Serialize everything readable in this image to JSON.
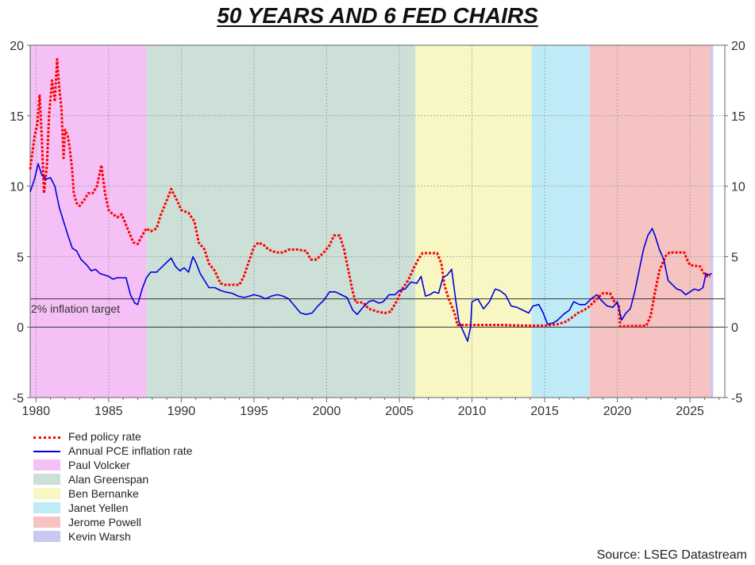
{
  "title": "50 YEARS AND 6 FED CHAIRS",
  "source": "Source: LSEG Datastream",
  "chart_data": {
    "type": "line",
    "title": "50 YEARS AND 6 FED CHAIRS",
    "xlim": [
      1979.6,
      2027.4
    ],
    "ylim": [
      -5,
      20
    ],
    "x_ticks": [
      "1980",
      "1985",
      "1990",
      "1995",
      "2000",
      "2005",
      "2010",
      "2015",
      "2020",
      "2025"
    ],
    "y_ticks": [
      "20",
      "15",
      "10",
      "5",
      "0",
      "-5"
    ],
    "grid": true,
    "legend_position": "bottom-left",
    "reference_line": {
      "y": 2,
      "label": "2% inflation target"
    },
    "chairs": [
      {
        "name": "Paul Volcker",
        "start": 1979.6,
        "end": 1987.6,
        "color": "#f5c0f5"
      },
      {
        "name": "Alan Greenspan",
        "start": 1987.6,
        "end": 2006.1,
        "color": "#cde0d7"
      },
      {
        "name": "Ben Bernanke",
        "start": 2006.1,
        "end": 2014.1,
        "color": "#f8f7c3"
      },
      {
        "name": "Janet Yellen",
        "start": 2014.1,
        "end": 2018.1,
        "color": "#bfeaf7"
      },
      {
        "name": "Jerome Powell",
        "start": 2018.1,
        "end": 2026.4,
        "color": "#f6c3c3"
      },
      {
        "name": "Kevin Warsh",
        "start": 2026.4,
        "end": 2026.6,
        "color": "#c8c8f0"
      }
    ],
    "series": [
      {
        "name": "Fed policy rate",
        "color": "#ff0000",
        "style": "dotted",
        "points": [
          [
            1979.6,
            11.2
          ],
          [
            1979.9,
            13.5
          ],
          [
            1980.1,
            14.5
          ],
          [
            1980.25,
            16.5
          ],
          [
            1980.4,
            13.5
          ],
          [
            1980.55,
            9.5
          ],
          [
            1980.75,
            11.5
          ],
          [
            1980.9,
            15
          ],
          [
            1981.1,
            17.5
          ],
          [
            1981.3,
            16
          ],
          [
            1981.45,
            19
          ],
          [
            1981.6,
            17
          ],
          [
            1981.75,
            15.5
          ],
          [
            1981.9,
            12
          ],
          [
            1982.0,
            14
          ],
          [
            1982.2,
            13.5
          ],
          [
            1982.35,
            12.5
          ],
          [
            1982.5,
            11
          ],
          [
            1982.6,
            9.5
          ],
          [
            1982.8,
            8.8
          ],
          [
            1983.0,
            8.6
          ],
          [
            1983.3,
            9
          ],
          [
            1983.6,
            9.5
          ],
          [
            1983.9,
            9.5
          ],
          [
            1984.2,
            10
          ],
          [
            1984.5,
            11.5
          ],
          [
            1984.75,
            9.5
          ],
          [
            1985.0,
            8.3
          ],
          [
            1985.3,
            8
          ],
          [
            1985.6,
            7.8
          ],
          [
            1985.9,
            8
          ],
          [
            1986.3,
            7
          ],
          [
            1986.7,
            6
          ],
          [
            1987.0,
            5.9
          ],
          [
            1987.3,
            6.5
          ],
          [
            1987.6,
            7
          ],
          [
            1987.9,
            6.8
          ],
          [
            1988.3,
            7
          ],
          [
            1988.6,
            8
          ],
          [
            1989.0,
            9
          ],
          [
            1989.3,
            9.8
          ],
          [
            1989.7,
            9
          ],
          [
            1990.0,
            8.3
          ],
          [
            1990.5,
            8.1
          ],
          [
            1990.9,
            7.5
          ],
          [
            1991.2,
            6
          ],
          [
            1991.6,
            5.5
          ],
          [
            1991.9,
            4.5
          ],
          [
            1992.3,
            4
          ],
          [
            1992.7,
            3.1
          ],
          [
            1993.0,
            3
          ],
          [
            1993.5,
            3
          ],
          [
            1994.0,
            3
          ],
          [
            1994.3,
            3.6
          ],
          [
            1994.7,
            4.8
          ],
          [
            1995.0,
            5.7
          ],
          [
            1995.3,
            6
          ],
          [
            1995.7,
            5.8
          ],
          [
            1996.0,
            5.5
          ],
          [
            1996.5,
            5.3
          ],
          [
            1997.0,
            5.3
          ],
          [
            1997.4,
            5.5
          ],
          [
            1998.0,
            5.5
          ],
          [
            1998.6,
            5.4
          ],
          [
            1998.9,
            4.8
          ],
          [
            1999.3,
            4.8
          ],
          [
            1999.8,
            5.3
          ],
          [
            2000.2,
            5.8
          ],
          [
            2000.5,
            6.5
          ],
          [
            2000.9,
            6.5
          ],
          [
            2001.2,
            5.5
          ],
          [
            2001.5,
            4
          ],
          [
            2001.8,
            2.5
          ],
          [
            2002.0,
            1.75
          ],
          [
            2002.5,
            1.75
          ],
          [
            2002.9,
            1.3
          ],
          [
            2003.5,
            1.1
          ],
          [
            2004.0,
            1
          ],
          [
            2004.4,
            1.1
          ],
          [
            2004.8,
            1.8
          ],
          [
            2005.2,
            2.7
          ],
          [
            2005.6,
            3.3
          ],
          [
            2006.0,
            4.2
          ],
          [
            2006.3,
            4.8
          ],
          [
            2006.6,
            5.25
          ],
          [
            2007.0,
            5.25
          ],
          [
            2007.6,
            5.25
          ],
          [
            2007.9,
            4.5
          ],
          [
            2008.1,
            3
          ],
          [
            2008.4,
            2
          ],
          [
            2008.8,
            1
          ],
          [
            2009.0,
            0.15
          ],
          [
            2010.0,
            0.15
          ],
          [
            2012.0,
            0.15
          ],
          [
            2014.0,
            0.1
          ],
          [
            2015.0,
            0.1
          ],
          [
            2015.9,
            0.2
          ],
          [
            2016.5,
            0.4
          ],
          [
            2016.9,
            0.7
          ],
          [
            2017.3,
            1
          ],
          [
            2017.7,
            1.2
          ],
          [
            2018.0,
            1.4
          ],
          [
            2018.4,
            1.8
          ],
          [
            2018.8,
            2.2
          ],
          [
            2019.0,
            2.4
          ],
          [
            2019.5,
            2.4
          ],
          [
            2019.8,
            1.8
          ],
          [
            2020.1,
            1.6
          ],
          [
            2020.2,
            0.05
          ],
          [
            2021.0,
            0.08
          ],
          [
            2022.0,
            0.1
          ],
          [
            2022.3,
            0.8
          ],
          [
            2022.6,
            2.5
          ],
          [
            2022.9,
            4
          ],
          [
            2023.3,
            5
          ],
          [
            2023.6,
            5.3
          ],
          [
            2024.0,
            5.3
          ],
          [
            2024.6,
            5.3
          ],
          [
            2024.8,
            4.8
          ],
          [
            2025.0,
            4.4
          ],
          [
            2025.7,
            4.3
          ],
          [
            2025.9,
            3.9
          ],
          [
            2026.2,
            3.6
          ],
          [
            2026.4,
            3.6
          ]
        ]
      },
      {
        "name": "Annual PCE inflation rate",
        "color": "#0000dd",
        "style": "solid",
        "points": [
          [
            1979.6,
            9.6
          ],
          [
            1979.9,
            10.5
          ],
          [
            1980.15,
            11.6
          ],
          [
            1980.4,
            10.8
          ],
          [
            1980.7,
            10.5
          ],
          [
            1981.0,
            10.6
          ],
          [
            1981.3,
            10
          ],
          [
            1981.6,
            8.5
          ],
          [
            1981.9,
            7.5
          ],
          [
            1982.2,
            6.5
          ],
          [
            1982.5,
            5.6
          ],
          [
            1982.8,
            5.4
          ],
          [
            1983.1,
            4.8
          ],
          [
            1983.5,
            4.4
          ],
          [
            1983.8,
            4
          ],
          [
            1984.1,
            4.1
          ],
          [
            1984.4,
            3.8
          ],
          [
            1984.7,
            3.7
          ],
          [
            1985.0,
            3.6
          ],
          [
            1985.3,
            3.4
          ],
          [
            1985.6,
            3.5
          ],
          [
            1985.9,
            3.5
          ],
          [
            1986.2,
            3.5
          ],
          [
            1986.5,
            2.3
          ],
          [
            1986.8,
            1.7
          ],
          [
            1987.0,
            1.6
          ],
          [
            1987.3,
            2.7
          ],
          [
            1987.6,
            3.5
          ],
          [
            1987.9,
            3.9
          ],
          [
            1988.3,
            3.9
          ],
          [
            1988.7,
            4.3
          ],
          [
            1989.0,
            4.6
          ],
          [
            1989.3,
            4.9
          ],
          [
            1989.6,
            4.3
          ],
          [
            1989.9,
            4
          ],
          [
            1990.2,
            4.2
          ],
          [
            1990.5,
            3.9
          ],
          [
            1990.8,
            5
          ],
          [
            1991.0,
            4.6
          ],
          [
            1991.3,
            3.8
          ],
          [
            1991.6,
            3.3
          ],
          [
            1991.9,
            2.8
          ],
          [
            1992.3,
            2.8
          ],
          [
            1992.7,
            2.6
          ],
          [
            1993.0,
            2.5
          ],
          [
            1993.5,
            2.4
          ],
          [
            1993.9,
            2.2
          ],
          [
            1994.3,
            2.1
          ],
          [
            1994.7,
            2.2
          ],
          [
            1995.0,
            2.3
          ],
          [
            1995.4,
            2.2
          ],
          [
            1995.8,
            2
          ],
          [
            1996.2,
            2.2
          ],
          [
            1996.6,
            2.3
          ],
          [
            1997.0,
            2.2
          ],
          [
            1997.4,
            2
          ],
          [
            1997.8,
            1.5
          ],
          [
            1998.2,
            1
          ],
          [
            1998.6,
            0.9
          ],
          [
            1999.0,
            1
          ],
          [
            1999.4,
            1.5
          ],
          [
            1999.8,
            1.9
          ],
          [
            2000.2,
            2.5
          ],
          [
            2000.6,
            2.5
          ],
          [
            2001.0,
            2.3
          ],
          [
            2001.4,
            2.1
          ],
          [
            2001.8,
            1.2
          ],
          [
            2002.1,
            0.9
          ],
          [
            2002.5,
            1.4
          ],
          [
            2002.9,
            1.8
          ],
          [
            2003.2,
            1.9
          ],
          [
            2003.6,
            1.7
          ],
          [
            2003.9,
            1.8
          ],
          [
            2004.3,
            2.3
          ],
          [
            2004.7,
            2.3
          ],
          [
            2005.0,
            2.6
          ],
          [
            2005.4,
            2.7
          ],
          [
            2005.8,
            3.2
          ],
          [
            2006.2,
            3.1
          ],
          [
            2006.5,
            3.6
          ],
          [
            2006.8,
            2.2
          ],
          [
            2007.1,
            2.3
          ],
          [
            2007.4,
            2.5
          ],
          [
            2007.7,
            2.4
          ],
          [
            2008.0,
            3.5
          ],
          [
            2008.3,
            3.7
          ],
          [
            2008.6,
            4.1
          ],
          [
            2008.9,
            1.8
          ],
          [
            2009.1,
            0.4
          ],
          [
            2009.4,
            -0.3
          ],
          [
            2009.7,
            -1
          ],
          [
            2009.9,
            0
          ],
          [
            2010.0,
            1.8
          ],
          [
            2010.4,
            2
          ],
          [
            2010.8,
            1.3
          ],
          [
            2011.2,
            1.8
          ],
          [
            2011.6,
            2.7
          ],
          [
            2011.9,
            2.6
          ],
          [
            2012.3,
            2.3
          ],
          [
            2012.7,
            1.5
          ],
          [
            2013.1,
            1.4
          ],
          [
            2013.5,
            1.2
          ],
          [
            2013.9,
            1
          ],
          [
            2014.2,
            1.5
          ],
          [
            2014.6,
            1.6
          ],
          [
            2014.9,
            1
          ],
          [
            2015.2,
            0.2
          ],
          [
            2015.6,
            0.3
          ],
          [
            2015.9,
            0.5
          ],
          [
            2016.3,
            0.9
          ],
          [
            2016.7,
            1.2
          ],
          [
            2017.0,
            1.8
          ],
          [
            2017.4,
            1.6
          ],
          [
            2017.8,
            1.6
          ],
          [
            2018.2,
            2
          ],
          [
            2018.6,
            2.3
          ],
          [
            2018.9,
            1.9
          ],
          [
            2019.3,
            1.5
          ],
          [
            2019.7,
            1.4
          ],
          [
            2020.0,
            1.8
          ],
          [
            2020.3,
            0.5
          ],
          [
            2020.6,
            1
          ],
          [
            2020.9,
            1.3
          ],
          [
            2021.2,
            2.5
          ],
          [
            2021.5,
            4
          ],
          [
            2021.8,
            5.5
          ],
          [
            2022.1,
            6.5
          ],
          [
            2022.4,
            7
          ],
          [
            2022.6,
            6.5
          ],
          [
            2022.9,
            5.5
          ],
          [
            2023.2,
            4.8
          ],
          [
            2023.5,
            3.3
          ],
          [
            2023.8,
            3
          ],
          [
            2024.1,
            2.7
          ],
          [
            2024.4,
            2.6
          ],
          [
            2024.7,
            2.3
          ],
          [
            2025.0,
            2.5
          ],
          [
            2025.3,
            2.7
          ],
          [
            2025.6,
            2.6
          ],
          [
            2025.9,
            2.8
          ],
          [
            2026.1,
            3.8
          ],
          [
            2026.3,
            3.7
          ],
          [
            2026.5,
            3.8
          ]
        ]
      }
    ]
  },
  "legend": [
    {
      "label": "Fed policy rate",
      "kind": "dotted-line",
      "color": "#ff0000"
    },
    {
      "label": "Annual PCE inflation rate",
      "kind": "line",
      "color": "#0000dd"
    },
    {
      "label": "Paul Volcker",
      "kind": "box",
      "color": "#f5c0f5"
    },
    {
      "label": "Alan Greenspan",
      "kind": "box",
      "color": "#cde0d7"
    },
    {
      "label": "Ben Bernanke",
      "kind": "box",
      "color": "#f8f7c3"
    },
    {
      "label": "Janet Yellen",
      "kind": "box",
      "color": "#bfeaf7"
    },
    {
      "label": "Jerome Powell",
      "kind": "box",
      "color": "#f6c3c3"
    },
    {
      "label": "Kevin Warsh",
      "kind": "box",
      "color": "#c8c8f0"
    }
  ]
}
